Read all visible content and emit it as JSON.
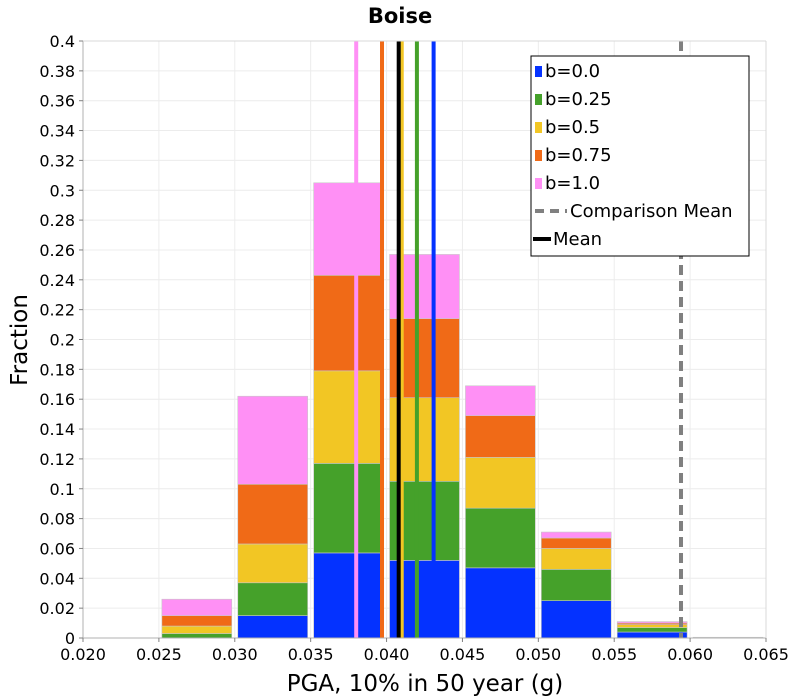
{
  "chart_data": {
    "type": "bar",
    "stacked": true,
    "title": "Boise",
    "xlabel": "PGA, 10% in 50 year (g)",
    "ylabel": "Fraction",
    "xlim": [
      0.02,
      0.065
    ],
    "ylim": [
      0,
      0.4
    ],
    "xticks": [
      "0.020",
      "0.025",
      "0.030",
      "0.035",
      "0.040",
      "0.045",
      "0.050",
      "0.055",
      "0.060",
      "0.065"
    ],
    "yticks": [
      "0",
      "0.02",
      "0.04",
      "0.06",
      "0.08",
      "0.1",
      "0.12",
      "0.14",
      "0.16",
      "0.18",
      "0.2",
      "0.22",
      "0.24",
      "0.26",
      "0.28",
      "0.3",
      "0.32",
      "0.34",
      "0.36",
      "0.38",
      "0.4"
    ],
    "bin_centers": [
      0.0225,
      0.0275,
      0.0325,
      0.0375,
      0.0425,
      0.0475,
      0.0525,
      0.0575,
      0.0625
    ],
    "bin_width": 0.005,
    "series": [
      {
        "name": "b=0.0",
        "color": "#0432ff",
        "values": [
          0,
          0.0,
          0.015,
          0.057,
          0.052,
          0.047,
          0.025,
          0.004,
          0.0005
        ]
      },
      {
        "name": "b=0.25",
        "color": "#45a12a",
        "values": [
          0,
          0.003,
          0.022,
          0.06,
          0.053,
          0.04,
          0.021,
          0.003,
          0
        ]
      },
      {
        "name": "b=0.5",
        "color": "#f2c624",
        "values": [
          0,
          0.005,
          0.026,
          0.062,
          0.056,
          0.034,
          0.014,
          0.002,
          0
        ]
      },
      {
        "name": "b=0.75",
        "color": "#f06a17",
        "values": [
          0,
          0.007,
          0.04,
          0.064,
          0.053,
          0.028,
          0.007,
          0.001,
          0
        ]
      },
      {
        "name": "b=1.0",
        "color": "#ff90f5",
        "values": [
          0,
          0.011,
          0.059,
          0.062,
          0.043,
          0.02,
          0.004,
          0.001,
          0
        ]
      }
    ],
    "vertical_lines": [
      {
        "name": "b=0.0 mean",
        "x": 0.0431,
        "color": "#0432ff",
        "style": "solid"
      },
      {
        "name": "b=0.25 mean",
        "x": 0.042,
        "color": "#45a12a",
        "style": "solid"
      },
      {
        "name": "b=0.5 mean",
        "x": 0.041,
        "color": "#f2c624",
        "style": "solid"
      },
      {
        "name": "b=0.75 mean",
        "x": 0.0397,
        "color": "#f06a17",
        "style": "solid"
      },
      {
        "name": "b=1.0 mean",
        "x": 0.038,
        "color": "#ff90f5",
        "style": "solid"
      },
      {
        "name": "Mean",
        "x": 0.0408,
        "color": "#000000",
        "style": "solid"
      },
      {
        "name": "Comparison Mean",
        "x": 0.0594,
        "color": "#808080",
        "style": "dashed"
      }
    ],
    "legend": {
      "position": "top-right",
      "entries": [
        {
          "label": "b=0.0",
          "color": "#0432ff",
          "kind": "box"
        },
        {
          "label": "b=0.25",
          "color": "#45a12a",
          "kind": "box"
        },
        {
          "label": "b=0.5",
          "color": "#f2c624",
          "kind": "box"
        },
        {
          "label": "b=0.75",
          "color": "#f06a17",
          "kind": "box"
        },
        {
          "label": "b=1.0",
          "color": "#ff90f5",
          "kind": "box"
        },
        {
          "label": "Comparison Mean",
          "color": "#808080",
          "kind": "dashed"
        },
        {
          "label": "Mean",
          "color": "#000000",
          "kind": "line"
        }
      ]
    },
    "grid": true
  }
}
